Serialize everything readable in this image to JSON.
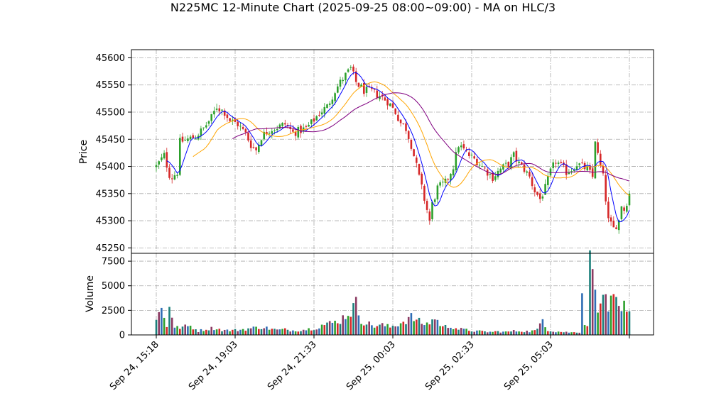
{
  "chart_data": {
    "type": "candlestick",
    "title": "N225MC 12-Minute Chart (2025-09-25 08:00~09:00) - MA on HLC/3",
    "xlabel": "",
    "price_panel": {
      "ylabel": "Price",
      "ylim": [
        45240,
        45615
      ],
      "yticks": [
        45250,
        45300,
        45350,
        45400,
        45450,
        45500,
        45550,
        45600
      ],
      "ytick_labels": [
        "45250",
        "45300",
        "45350",
        "45400",
        "45450",
        "45500",
        "45550",
        "45600"
      ],
      "up_color": "#2ca02c",
      "down_color": "#d62728",
      "grid": true
    },
    "volume_panel": {
      "ylabel": "Volume",
      "ylim": [
        0,
        8300
      ],
      "yticks": [
        0,
        2500,
        5000,
        7500
      ],
      "ytick_labels": [
        "0",
        "2500",
        "5000",
        "7500"
      ],
      "bar_colors": [
        "#1a7f7a",
        "#8b3a62",
        "#2f6db5",
        "#2ca02c",
        "#d62728"
      ],
      "grid": true
    },
    "x_tick_labels": [
      "Sep 24, 15:18",
      "Sep 24, 19:03",
      "Sep 24, 21:33",
      "Sep 25, 00:03",
      "Sep 25, 02:33",
      "Sep 25, 05:03",
      ""
    ],
    "x_tick_index": [
      0,
      30,
      60,
      90,
      120,
      150,
      180
    ],
    "bar_count": 180,
    "close_anchors": [
      [
        0,
        45400
      ],
      [
        3,
        45420
      ],
      [
        5,
        45385
      ],
      [
        6,
        45380
      ],
      [
        8,
        45390
      ],
      [
        9,
        45445
      ],
      [
        12,
        45450
      ],
      [
        15,
        45455
      ],
      [
        18,
        45470
      ],
      [
        21,
        45490
      ],
      [
        23,
        45510
      ],
      [
        26,
        45500
      ],
      [
        28,
        45485
      ],
      [
        31,
        45478
      ],
      [
        34,
        45460
      ],
      [
        36,
        45440
      ],
      [
        38,
        45430
      ],
      [
        40,
        45455
      ],
      [
        43,
        45468
      ],
      [
        46,
        45472
      ],
      [
        49,
        45478
      ],
      [
        52,
        45462
      ],
      [
        54,
        45465
      ],
      [
        57,
        45470
      ],
      [
        59,
        45480
      ],
      [
        62,
        45498
      ],
      [
        65,
        45510
      ],
      [
        68,
        45540
      ],
      [
        71,
        45562
      ],
      [
        74,
        45580
      ],
      [
        76,
        45555
      ],
      [
        79,
        45540
      ],
      [
        82,
        45538
      ],
      [
        85,
        45530
      ],
      [
        88,
        45520
      ],
      [
        91,
        45500
      ],
      [
        93,
        45480
      ],
      [
        95,
        45470
      ],
      [
        97,
        45440
      ],
      [
        99,
        45400
      ],
      [
        101,
        45360
      ],
      [
        103,
        45320
      ],
      [
        104,
        45300
      ],
      [
        105,
        45330
      ],
      [
        107,
        45360
      ],
      [
        110,
        45370
      ],
      [
        113,
        45400
      ],
      [
        115,
        45440
      ],
      [
        117,
        45430
      ],
      [
        119,
        45420
      ],
      [
        122,
        45410
      ],
      [
        125,
        45395
      ],
      [
        128,
        45380
      ],
      [
        131,
        45395
      ],
      [
        134,
        45405
      ],
      [
        136,
        45420
      ],
      [
        138,
        45405
      ],
      [
        140,
        45395
      ],
      [
        142,
        45380
      ],
      [
        144,
        45355
      ],
      [
        146,
        45340
      ],
      [
        148,
        45360
      ],
      [
        150,
        45390
      ],
      [
        152,
        45410
      ],
      [
        154,
        45400
      ],
      [
        156,
        45390
      ],
      [
        158,
        45395
      ],
      [
        160,
        45405
      ],
      [
        162,
        45400
      ],
      [
        164,
        45395
      ],
      [
        166,
        45380
      ],
      [
        167,
        45450
      ],
      [
        168,
        45420
      ],
      [
        170,
        45380
      ],
      [
        172,
        45300
      ],
      [
        174,
        45285
      ],
      [
        176,
        45300
      ],
      [
        177,
        45330
      ],
      [
        178,
        45320
      ],
      [
        180,
        45350
      ]
    ],
    "volume_anchors": [
      [
        0,
        1800
      ],
      [
        2,
        2600
      ],
      [
        4,
        900
      ],
      [
        5,
        3300
      ],
      [
        7,
        700
      ],
      [
        10,
        800
      ],
      [
        13,
        900
      ],
      [
        16,
        400
      ],
      [
        19,
        600
      ],
      [
        22,
        700
      ],
      [
        25,
        500
      ],
      [
        28,
        450
      ],
      [
        31,
        500
      ],
      [
        34,
        600
      ],
      [
        37,
        700
      ],
      [
        40,
        800
      ],
      [
        43,
        650
      ],
      [
        46,
        500
      ],
      [
        49,
        550
      ],
      [
        52,
        450
      ],
      [
        55,
        500
      ],
      [
        58,
        600
      ],
      [
        61,
        750
      ],
      [
        63,
        1000
      ],
      [
        65,
        1100
      ],
      [
        68,
        1300
      ],
      [
        70,
        1500
      ],
      [
        72,
        2000
      ],
      [
        74,
        2400
      ],
      [
        76,
        3100
      ],
      [
        78,
        1500
      ],
      [
        80,
        1200
      ],
      [
        83,
        900
      ],
      [
        86,
        1000
      ],
      [
        89,
        800
      ],
      [
        92,
        1100
      ],
      [
        95,
        1500
      ],
      [
        97,
        1800
      ],
      [
        99,
        1500
      ],
      [
        101,
        1200
      ],
      [
        103,
        1100
      ],
      [
        106,
        1700
      ],
      [
        109,
        800
      ],
      [
        112,
        900
      ],
      [
        115,
        600
      ],
      [
        118,
        500
      ],
      [
        121,
        400
      ],
      [
        124,
        350
      ],
      [
        127,
        300
      ],
      [
        130,
        350
      ],
      [
        133,
        300
      ],
      [
        136,
        400
      ],
      [
        139,
        400
      ],
      [
        142,
        350
      ],
      [
        145,
        500
      ],
      [
        147,
        1700
      ],
      [
        149,
        500
      ],
      [
        152,
        350
      ],
      [
        155,
        300
      ],
      [
        158,
        250
      ],
      [
        161,
        300
      ],
      [
        162,
        4900
      ],
      [
        163,
        1000
      ],
      [
        164,
        1200
      ],
      [
        165,
        7000
      ],
      [
        166,
        8000
      ],
      [
        167,
        3800
      ],
      [
        168,
        3200
      ],
      [
        169,
        4400
      ],
      [
        170,
        3300
      ],
      [
        171,
        3800
      ],
      [
        172,
        2500
      ],
      [
        173,
        4700
      ],
      [
        174,
        3200
      ],
      [
        175,
        3300
      ],
      [
        176,
        2300
      ],
      [
        177,
        1900
      ],
      [
        178,
        3300
      ],
      [
        179,
        1900
      ],
      [
        180,
        2100
      ]
    ],
    "series": [
      {
        "name": "",
        "color": "#0000ff",
        "period": 5
      },
      {
        "name": "",
        "color": "#ffa500",
        "period": 15
      },
      {
        "name": "",
        "color": "#800080",
        "period": 30
      }
    ]
  }
}
